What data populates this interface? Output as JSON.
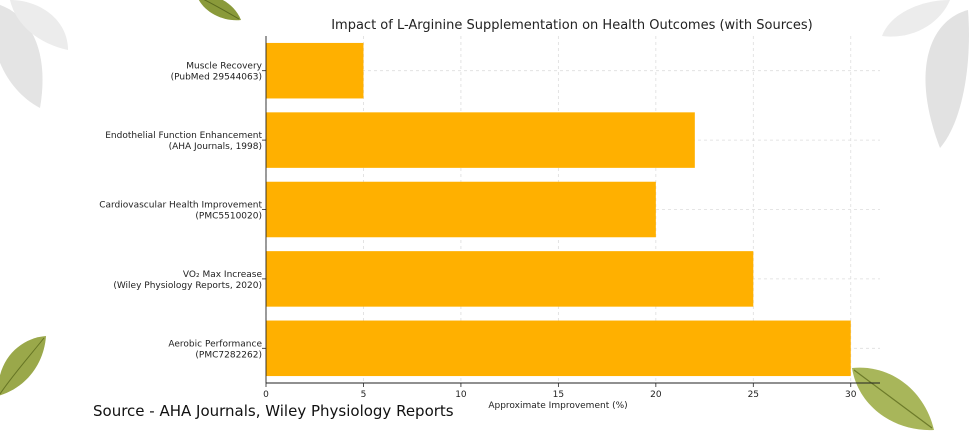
{
  "chart_data": {
    "type": "bar",
    "orientation": "horizontal",
    "title": "Impact of L-Arginine Supplementation on Health Outcomes (with Sources)",
    "xlabel": "Approximate Improvement (%)",
    "ylabel": "",
    "xlim": [
      0,
      31.5
    ],
    "xticks": [
      0,
      5,
      10,
      15,
      20,
      25,
      30
    ],
    "grid": true,
    "bar_color": "#FFB000",
    "categories": [
      {
        "label": "Muscle Recovery",
        "source": "(PubMed 29544063)"
      },
      {
        "label": "Endothelial Function Enhancement",
        "source": "(AHA Journals, 1998)"
      },
      {
        "label": "Cardiovascular Health Improvement",
        "source": "(PMC5510020)"
      },
      {
        "label": "VO₂ Max Increase",
        "source": "(Wiley Physiology Reports, 2020)"
      },
      {
        "label": "Aerobic Performance",
        "source": "(PMC7282262)"
      }
    ],
    "values": [
      5,
      22,
      20,
      25,
      30
    ]
  },
  "caption": "Source - AHA Journals, Wiley Physiology Reports",
  "decor": [
    "leaf-icon",
    "leaf-icon",
    "leaf-icon",
    "leaf-icon"
  ]
}
